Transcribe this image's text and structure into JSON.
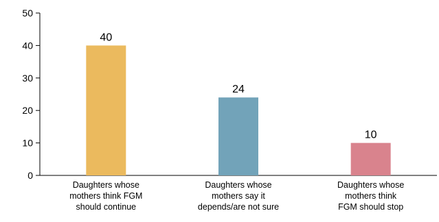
{
  "chart_data": {
    "type": "bar",
    "title": "",
    "xlabel": "",
    "ylabel": "",
    "ylim": [
      0,
      50
    ],
    "yticks": [
      0,
      10,
      20,
      30,
      40,
      50
    ],
    "grid": false,
    "categories": [
      [
        "Daughters whose",
        "mothers think FGM",
        "should continue"
      ],
      [
        "Daughters whose",
        "mothers say it",
        "depends/are not sure"
      ],
      [
        "Daughters whose",
        "mothers think",
        "FGM should stop"
      ]
    ],
    "values": [
      40,
      24,
      10
    ],
    "data_labels": [
      "40",
      "24",
      "10"
    ],
    "colors": [
      "#EBBA5E",
      "#72A3B9",
      "#D9838D"
    ]
  }
}
